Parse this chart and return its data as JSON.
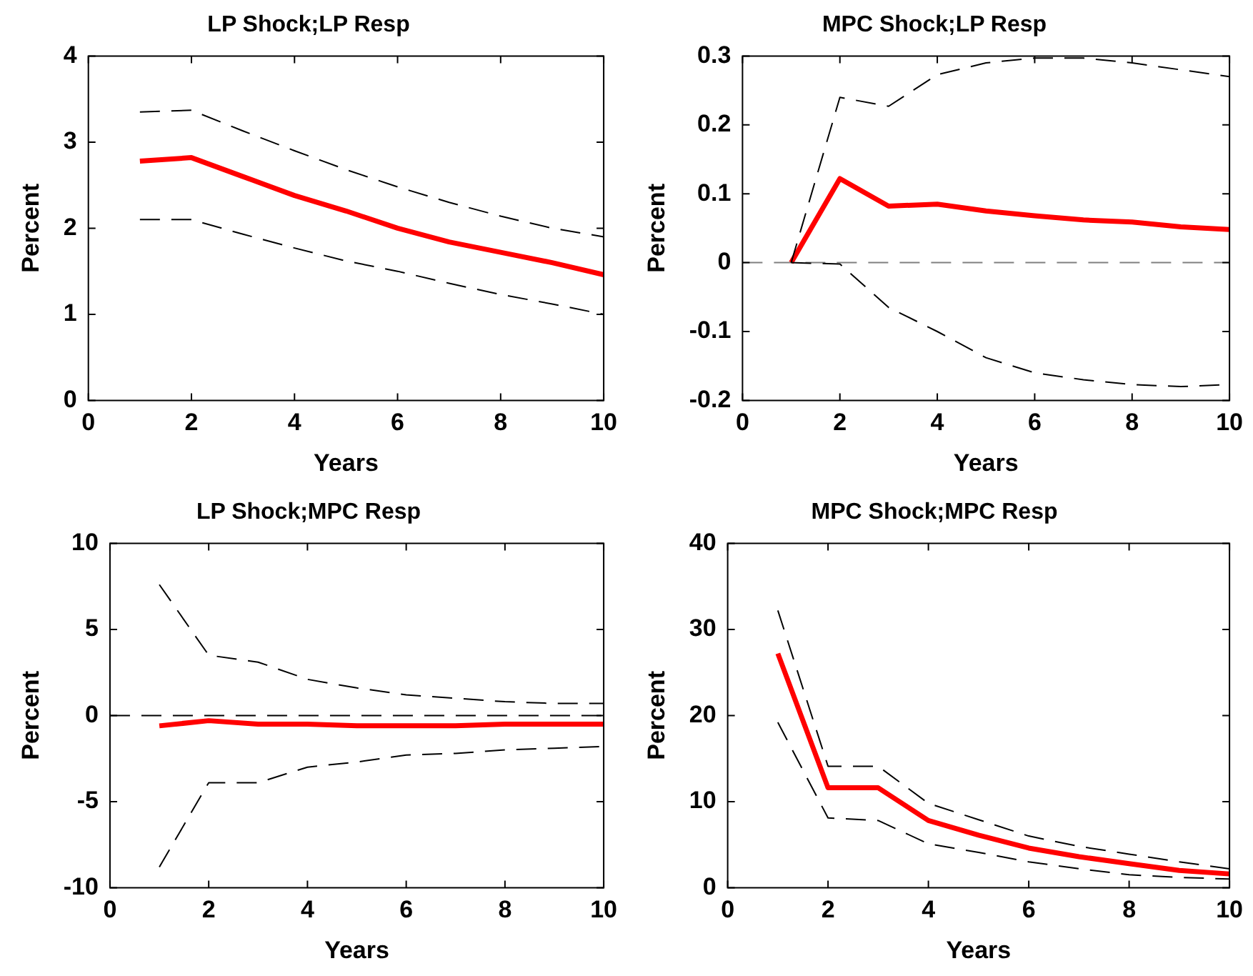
{
  "chart_data": [
    {
      "type": "line",
      "title": "LP Shock;LP Resp",
      "xlabel": "Years",
      "ylabel": "Percent",
      "x": [
        1,
        2,
        3,
        4,
        5,
        6,
        7,
        8,
        9,
        10
      ],
      "xlim": [
        0,
        10
      ],
      "xticks": [
        0,
        2,
        4,
        6,
        8,
        10
      ],
      "ylim": [
        0,
        4
      ],
      "yticks": [
        0,
        1,
        2,
        3,
        4
      ],
      "grid": false,
      "legend": false,
      "marker": "none",
      "series": [
        {
          "color": "#000000",
          "line_style": "dashed",
          "values": [
            3.35,
            3.37,
            3.13,
            2.9,
            2.68,
            2.48,
            2.3,
            2.14,
            2.0,
            1.9
          ]
        },
        {
          "color": "#000000",
          "line_style": "dashed",
          "values": [
            2.1,
            2.1,
            1.93,
            1.77,
            1.62,
            1.5,
            1.36,
            1.23,
            1.12,
            1.0
          ]
        },
        {
          "color": "#ff0000",
          "line_style": "solid",
          "values": [
            2.78,
            2.82,
            2.6,
            2.38,
            2.2,
            2.0,
            1.84,
            1.72,
            1.6,
            1.46
          ]
        }
      ]
    },
    {
      "type": "line",
      "title": "MPC Shock;LP Resp",
      "xlabel": "Years",
      "ylabel": "Percent",
      "x": [
        1,
        2,
        3,
        4,
        5,
        6,
        7,
        8,
        9,
        10
      ],
      "xlim": [
        0,
        10
      ],
      "xticks": [
        0,
        2,
        4,
        6,
        8,
        10
      ],
      "ylim": [
        -0.2,
        0.3
      ],
      "yticks": [
        -0.2,
        -0.1,
        0,
        0.1,
        0.2,
        0.3
      ],
      "grid": false,
      "legend": false,
      "marker": "none",
      "ref_lines": [
        {
          "axis": "y",
          "value": 0,
          "color": "#808080",
          "line_style": "dashed"
        }
      ],
      "series": [
        {
          "color": "#000000",
          "line_style": "dashed",
          "values": [
            0,
            0.24,
            0.227,
            0.273,
            0.29,
            0.297,
            0.297,
            0.29,
            0.28,
            0.27
          ]
        },
        {
          "color": "#000000",
          "line_style": "dashed",
          "values": [
            0,
            -0.002,
            -0.065,
            -0.1,
            -0.138,
            -0.16,
            -0.17,
            -0.177,
            -0.18,
            -0.177
          ]
        },
        {
          "color": "#ff0000",
          "line_style": "solid",
          "values": [
            0,
            0.122,
            0.082,
            0.085,
            0.075,
            0.068,
            0.062,
            0.059,
            0.052,
            0.048
          ]
        }
      ]
    },
    {
      "type": "line",
      "title": "LP Shock;MPC Resp",
      "xlabel": "Years",
      "ylabel": "Percent",
      "x": [
        1,
        2,
        3,
        4,
        5,
        6,
        7,
        8,
        9,
        10
      ],
      "xlim": [
        0,
        10
      ],
      "xticks": [
        0,
        2,
        4,
        6,
        8,
        10
      ],
      "ylim": [
        -10,
        10
      ],
      "yticks": [
        -10,
        -5,
        0,
        5,
        10
      ],
      "grid": false,
      "legend": false,
      "marker": "none",
      "ref_lines": [
        {
          "axis": "y",
          "value": 0,
          "color": "#000000",
          "line_style": "dashed"
        }
      ],
      "series": [
        {
          "color": "#000000",
          "line_style": "dashed",
          "values": [
            7.6,
            3.5,
            3.1,
            2.1,
            1.6,
            1.2,
            1.0,
            0.8,
            0.7,
            0.7
          ]
        },
        {
          "color": "#000000",
          "line_style": "dashed",
          "values": [
            -8.8,
            -3.9,
            -3.9,
            -3.0,
            -2.7,
            -2.3,
            -2.2,
            -2.0,
            -1.9,
            -1.8
          ]
        },
        {
          "color": "#ff0000",
          "line_style": "solid",
          "values": [
            -0.6,
            -0.3,
            -0.5,
            -0.5,
            -0.6,
            -0.6,
            -0.6,
            -0.5,
            -0.5,
            -0.5
          ]
        }
      ]
    },
    {
      "type": "line",
      "title": "MPC Shock;MPC Resp",
      "xlabel": "Years",
      "ylabel": "Percent",
      "x": [
        1,
        2,
        3,
        4,
        5,
        6,
        7,
        8,
        9,
        10
      ],
      "xlim": [
        0,
        10
      ],
      "xticks": [
        0,
        2,
        4,
        6,
        8,
        10
      ],
      "ylim": [
        0,
        40
      ],
      "yticks": [
        0,
        10,
        20,
        30,
        40
      ],
      "grid": false,
      "legend": false,
      "marker": "none",
      "series": [
        {
          "color": "#000000",
          "line_style": "dashed",
          "values": [
            32.2,
            14.1,
            14.1,
            9.8,
            7.9,
            6.0,
            4.8,
            3.9,
            3.0,
            2.2
          ]
        },
        {
          "color": "#000000",
          "line_style": "dashed",
          "values": [
            19.2,
            8.1,
            7.8,
            5.1,
            4.1,
            3.0,
            2.2,
            1.5,
            1.2,
            1.0
          ]
        },
        {
          "color": "#ff0000",
          "line_style": "solid",
          "values": [
            27.2,
            11.6,
            11.6,
            7.8,
            6.1,
            4.6,
            3.6,
            2.8,
            2.0,
            1.6
          ]
        }
      ]
    }
  ]
}
